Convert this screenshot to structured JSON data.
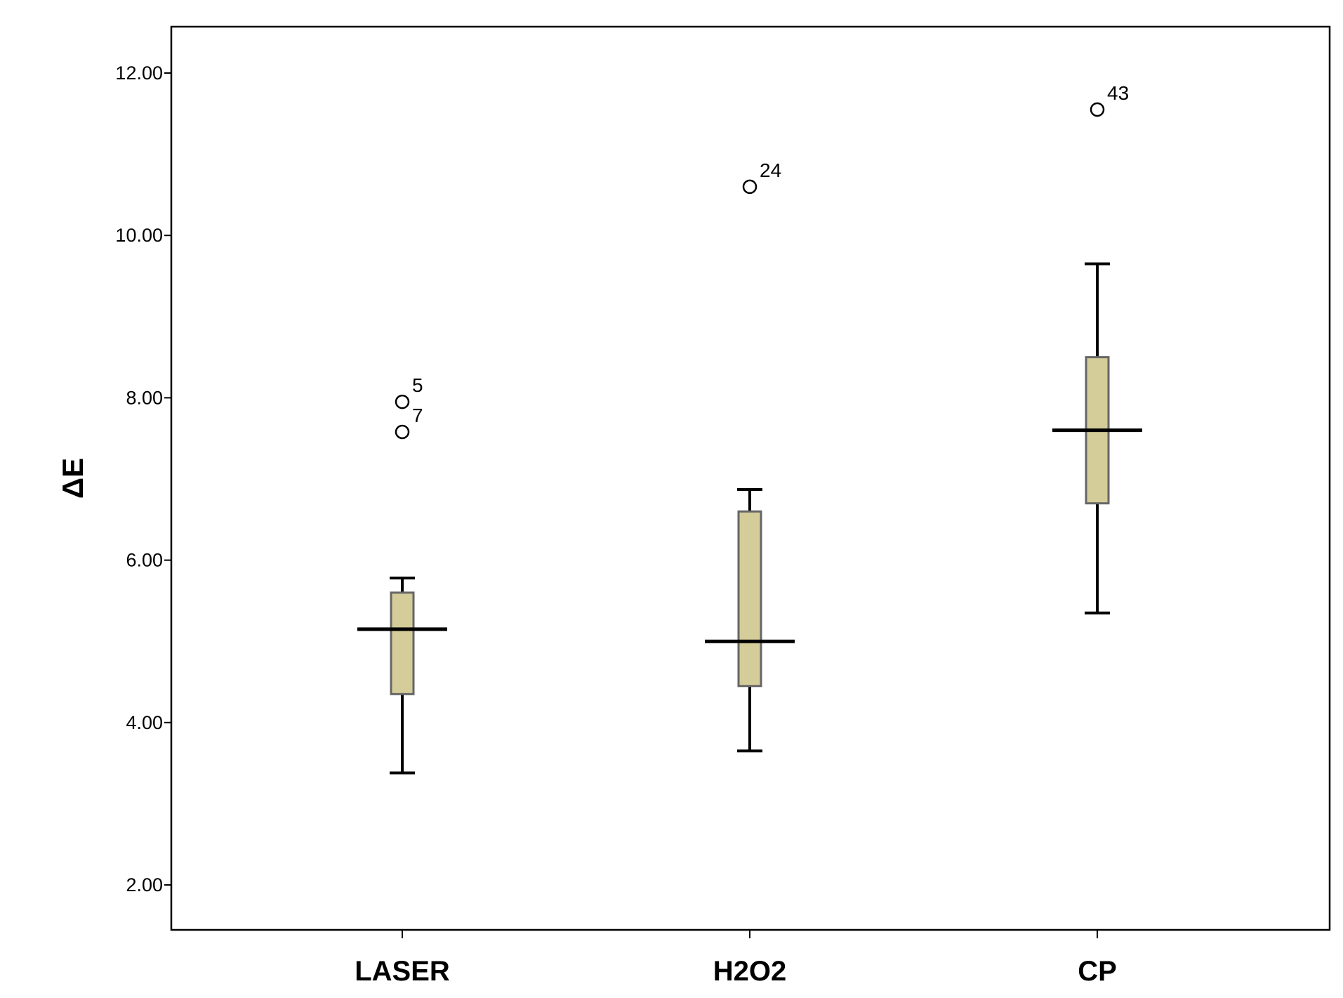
{
  "chart_data": {
    "type": "box",
    "ylabel": "ΔE",
    "xlabel": "",
    "ylim": [
      1.4,
      12.6
    ],
    "yticks": [
      2.0,
      4.0,
      6.0,
      8.0,
      10.0,
      12.0
    ],
    "ytick_labels": [
      "2.00",
      "4.00",
      "6.00",
      "8.00",
      "10.00",
      "12.00"
    ],
    "grid": false,
    "box_color": "#d4cc99",
    "box_edge_color": "#666666",
    "categories": [
      "LASER",
      "H2O2",
      "CP"
    ],
    "boxes": [
      {
        "category": "LASER",
        "whisker_low": 3.38,
        "q1": 4.35,
        "median": 5.15,
        "q3": 5.6,
        "whisker_high": 5.78,
        "outliers": [
          {
            "value": 7.95,
            "label": "5"
          },
          {
            "value": 7.58,
            "label": "7"
          }
        ]
      },
      {
        "category": "H2O2",
        "whisker_low": 3.65,
        "q1": 4.45,
        "median": 5.0,
        "q3": 6.6,
        "whisker_high": 6.87,
        "outliers": [
          {
            "value": 10.6,
            "label": "24"
          }
        ]
      },
      {
        "category": "CP",
        "whisker_low": 5.35,
        "q1": 6.7,
        "median": 7.6,
        "q3": 8.5,
        "whisker_high": 9.65,
        "outliers": [
          {
            "value": 11.55,
            "label": "43"
          }
        ]
      }
    ]
  }
}
